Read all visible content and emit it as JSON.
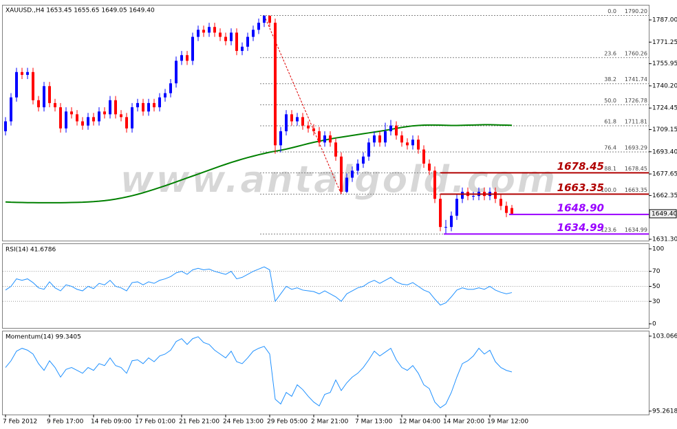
{
  "chart_data": [
    {
      "type": "candlestick",
      "title": "XAUUSD.,H4  1653.45 1655.65 1649.05 1649.40",
      "categories": [
        "7 Feb 2012",
        null,
        null,
        null,
        null,
        null,
        null,
        null,
        "9 Feb 17:00",
        null,
        null,
        null,
        null,
        null,
        null,
        null,
        "14 Feb 09:00",
        null,
        null,
        null,
        null,
        null,
        null,
        null,
        "17 Feb 01:00",
        null,
        null,
        null,
        null,
        null,
        null,
        null,
        "21 Feb 21:00",
        null,
        null,
        null,
        null,
        null,
        null,
        null,
        "24 Feb 13:00",
        null,
        null,
        null,
        null,
        null,
        null,
        null,
        "29 Feb 05:00",
        null,
        null,
        null,
        null,
        null,
        null,
        null,
        "2 Mar 21:00",
        null,
        null,
        null,
        null,
        null,
        null,
        null,
        "7 Mar 13:00",
        null,
        null,
        null,
        null,
        null,
        null,
        null,
        "12 Mar 04:00",
        null,
        null,
        null,
        null,
        null,
        null,
        null,
        "14 Mar 20:00",
        null,
        null,
        null,
        null,
        null,
        null,
        null,
        "19 Mar 12:00",
        null,
        null,
        null,
        null
      ],
      "open": [
        1708,
        1715,
        1732,
        1750,
        1748,
        1750,
        1730,
        1725,
        1740,
        1728,
        1725,
        1710,
        1722,
        1720,
        1715,
        1712,
        1718,
        1715,
        1722,
        1720,
        1730,
        1720,
        1718,
        1710,
        1725,
        1728,
        1722,
        1728,
        1725,
        1732,
        1735,
        1742,
        1758,
        1762,
        1758,
        1775,
        1780,
        1778,
        1782,
        1778,
        1775,
        1772,
        1778,
        1765,
        1768,
        1775,
        1780,
        1785,
        1790,
        1785,
        1698,
        1708,
        1720,
        1715,
        1718,
        1712,
        1710,
        1708,
        1700,
        1705,
        1700,
        1690,
        1665,
        1675,
        1680,
        1685,
        1690,
        1700,
        1705,
        1700,
        1708,
        1712,
        1705,
        1700,
        1698,
        1702,
        1695,
        1685,
        1680,
        1660,
        1640,
        1640,
        1648,
        1660,
        1665,
        1662,
        1662,
        1665,
        1662,
        1665,
        1660,
        1655,
        1653.45
      ],
      "high": [
        1718,
        1735,
        1753,
        1753,
        1753,
        1753,
        1733,
        1743,
        1743,
        1731,
        1728,
        1725,
        1725,
        1723,
        1718,
        1721,
        1721,
        1725,
        1725,
        1733,
        1733,
        1723,
        1721,
        1728,
        1731,
        1731,
        1731,
        1731,
        1735,
        1738,
        1745,
        1761,
        1765,
        1765,
        1778,
        1783,
        1783,
        1785,
        1785,
        1781,
        1778,
        1781,
        1781,
        1771,
        1778,
        1783,
        1788,
        1790.2,
        1789,
        1788,
        1711,
        1723,
        1723,
        1721,
        1721,
        1715,
        1713,
        1711,
        1708,
        1708,
        1703,
        1693,
        1678,
        1683,
        1688,
        1693,
        1703,
        1708,
        1708,
        1714,
        1716,
        1715,
        1708,
        1703,
        1705,
        1705,
        1698,
        1688,
        1683,
        1663,
        1645,
        1651,
        1663,
        1668,
        1668,
        1665,
        1668,
        1668,
        1668,
        1668,
        1663,
        1658,
        1655.65
      ],
      "low": [
        1705,
        1712,
        1729,
        1745,
        1745,
        1727,
        1722,
        1722,
        1725,
        1722,
        1707,
        1707,
        1717,
        1712,
        1709,
        1709,
        1712,
        1712,
        1717,
        1717,
        1717,
        1715,
        1707,
        1707,
        1722,
        1719,
        1719,
        1722,
        1722,
        1729,
        1732,
        1739,
        1755,
        1755,
        1755,
        1772,
        1775,
        1775,
        1775,
        1772,
        1769,
        1769,
        1762,
        1762,
        1765,
        1772,
        1777,
        1782,
        1782,
        1692,
        1693,
        1705,
        1712,
        1712,
        1709,
        1707,
        1705,
        1697,
        1697,
        1697,
        1687,
        1663.35,
        1664,
        1672,
        1677,
        1682,
        1687,
        1697,
        1697,
        1697,
        1705,
        1702,
        1697,
        1695,
        1695,
        1692,
        1682,
        1677,
        1657,
        1637,
        1634.99,
        1637,
        1645,
        1657,
        1659,
        1659,
        1659,
        1659,
        1659,
        1657,
        1652,
        1647,
        1649.05
      ],
      "close": [
        1715,
        1732,
        1750,
        1748,
        1750,
        1730,
        1725,
        1740,
        1728,
        1725,
        1710,
        1722,
        1720,
        1715,
        1712,
        1718,
        1715,
        1722,
        1720,
        1730,
        1720,
        1718,
        1710,
        1725,
        1728,
        1722,
        1728,
        1725,
        1732,
        1735,
        1742,
        1758,
        1762,
        1758,
        1775,
        1780,
        1778,
        1782,
        1778,
        1775,
        1772,
        1778,
        1765,
        1768,
        1775,
        1780,
        1785,
        1790,
        1785,
        1698,
        1708,
        1720,
        1715,
        1718,
        1712,
        1710,
        1708,
        1700,
        1705,
        1700,
        1690,
        1665,
        1675,
        1680,
        1685,
        1690,
        1700,
        1705,
        1700,
        1708,
        1712,
        1705,
        1700,
        1698,
        1702,
        1695,
        1685,
        1680,
        1660,
        1640,
        1640,
        1648,
        1660,
        1665,
        1662,
        1662,
        1665,
        1662,
        1665,
        1660,
        1655,
        1650,
        1649.4
      ],
      "up_color": "#0000ff",
      "down_color": "#ff0000",
      "moving_average": {
        "color": "#008000",
        "values": [
          1657.8,
          1657.6,
          1657.5,
          1657.4,
          1657.3,
          1657.3,
          1657.2,
          1657.2,
          1657.2,
          1657.2,
          1657.2,
          1657.3,
          1657.4,
          1657.5,
          1657.6,
          1657.8,
          1658.0,
          1658.3,
          1658.7,
          1659.2,
          1659.8,
          1660.5,
          1661.3,
          1662.2,
          1663.2,
          1664.3,
          1665.5,
          1666.7,
          1668.0,
          1669.3,
          1670.6,
          1672.0,
          1673.4,
          1674.8,
          1676.2,
          1677.6,
          1679.0,
          1680.4,
          1681.8,
          1683.2,
          1684.5,
          1685.8,
          1687.0,
          1688.2,
          1689.3,
          1690.3,
          1691.3,
          1692.2,
          1693.1,
          1693.8,
          1694.5,
          1695.3,
          1696.2,
          1697.2,
          1698.2,
          1699.2,
          1700.1,
          1700.9,
          1701.7,
          1702.5,
          1703.2,
          1703.8,
          1704.4,
          1705.0,
          1705.6,
          1706.2,
          1706.8,
          1707.4,
          1708.0,
          1708.6,
          1709.3,
          1710.0,
          1710.7,
          1711.3,
          1711.8,
          1712.1,
          1712.3,
          1712.4,
          1712.4,
          1712.3,
          1712.2,
          1712.1,
          1712.1,
          1712.2,
          1712.3,
          1712.4,
          1712.5,
          1712.6,
          1712.6,
          1712.5,
          1712.4,
          1712.3,
          1712.2
        ]
      },
      "ylim": [
        1630.32,
        1797.25
      ],
      "yticks": [
        {
          "value": 1787,
          "label": "1787.00"
        },
        {
          "value": 1771.25,
          "label": "1771.25"
        },
        {
          "value": 1755.95,
          "label": "1755.95"
        },
        {
          "value": 1740.2,
          "label": "1740.20"
        },
        {
          "value": 1724.45,
          "label": "1724.45"
        },
        {
          "value": 1709.15,
          "label": "1709.15"
        },
        {
          "value": 1693.4,
          "label": "1693.40"
        },
        {
          "value": 1677.65,
          "label": "1677.65"
        },
        {
          "value": 1662.35,
          "label": "1662.35"
        },
        {
          "value": 1631.3,
          "label": "1631.30"
        }
      ],
      "last_price": {
        "value": 1649.4,
        "label": "1649.40"
      },
      "fibonacci": {
        "color": "#808080",
        "levels": [
          "0.0",
          "23.6",
          "38.2",
          "50.0",
          "61.8",
          "76.4",
          "88.1",
          "100.0",
          "123.6"
        ],
        "values": [
          1790.2,
          1760.26,
          1741.74,
          1726.78,
          1711.81,
          1693.29,
          1678.45,
          1663.35,
          1634.99
        ],
        "value_labels": [
          "1790.20",
          "1760.26",
          "1741.74",
          "1726.78",
          "1711.81",
          "1693.29",
          "1678.45",
          "1663.35",
          "1634.99"
        ]
      },
      "levels": {
        "values": [
          1678.45,
          1663.35,
          1648.9,
          1634.99
        ],
        "value_labels": [
          "1678.45",
          "1663.35",
          "1648.90",
          "1634.99"
        ],
        "colors": [
          "#b00000",
          "#b00000",
          "#9900ff",
          "#9900ff"
        ]
      },
      "watermark": "www.antalgold.com"
    },
    {
      "type": "line",
      "title": "RSI(14) 41.6786",
      "color": "#1e90ff",
      "values": [
        45,
        50,
        60,
        58,
        60,
        55,
        48,
        46,
        56,
        48,
        44,
        52,
        50,
        46,
        44,
        50,
        47,
        54,
        52,
        58,
        50,
        48,
        44,
        55,
        56,
        52,
        56,
        54,
        58,
        60,
        63,
        68,
        70,
        66,
        72,
        74,
        72,
        73,
        70,
        68,
        66,
        70,
        60,
        62,
        66,
        70,
        73,
        76,
        72,
        30,
        40,
        50,
        46,
        48,
        45,
        44,
        43,
        40,
        44,
        40,
        36,
        30,
        40,
        44,
        48,
        50,
        55,
        58,
        54,
        58,
        62,
        56,
        53,
        52,
        55,
        50,
        45,
        42,
        33,
        25,
        28,
        36,
        45,
        48,
        46,
        46,
        48,
        46,
        50,
        45,
        42,
        40,
        41.6786
      ],
      "ylim": [
        -5.5,
        106.4
      ],
      "yticks": [
        100,
        70,
        50,
        30,
        0
      ]
    },
    {
      "type": "line",
      "title": "Momentum(14) 99.3405",
      "color": "#1e90ff",
      "values": [
        99.8,
        100.5,
        101.5,
        101.8,
        101.6,
        101.2,
        100.2,
        99.5,
        100.5,
        99.8,
        98.8,
        99.6,
        99.8,
        99.5,
        99.2,
        99.8,
        99.5,
        100.2,
        100.0,
        100.8,
        100.0,
        99.8,
        99.2,
        100.5,
        100.6,
        100.2,
        100.8,
        100.4,
        101.0,
        101.2,
        101.6,
        102.5,
        102.8,
        102.2,
        102.8,
        103.0,
        102.4,
        102.2,
        101.6,
        101.2,
        100.8,
        101.5,
        100.4,
        100.2,
        100.8,
        101.5,
        101.8,
        102.0,
        101.2,
        96.5,
        96.0,
        97.2,
        96.8,
        98.0,
        97.5,
        96.8,
        96.2,
        95.8,
        97.0,
        97.2,
        98.5,
        97.4,
        98.2,
        98.8,
        99.2,
        99.8,
        100.6,
        101.5,
        101.0,
        101.4,
        101.8,
        100.6,
        99.8,
        99.5,
        100.0,
        99.2,
        98.0,
        97.6,
        96.2,
        95.6,
        96.0,
        97.2,
        98.8,
        100.2,
        100.5,
        101.0,
        101.8,
        101.2,
        101.6,
        100.4,
        99.8,
        99.5,
        99.3405
      ],
      "ylim": [
        94.9,
        103.56
      ],
      "yticks": [
        103.066,
        95.2618
      ]
    }
  ]
}
